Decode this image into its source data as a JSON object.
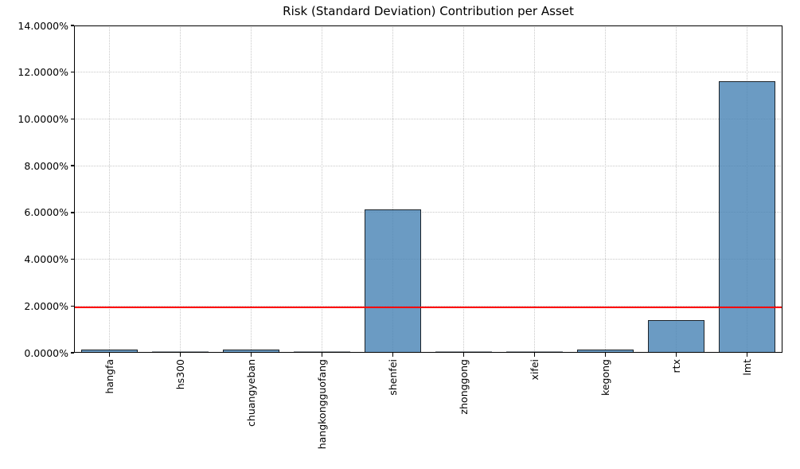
{
  "chart_data": {
    "type": "bar",
    "title": "Risk (Standard Deviation) Contribution per Asset",
    "xlabel": "",
    "ylabel": "",
    "categories": [
      "hangfa",
      "hs300",
      "chuangyeban",
      "hangkongguofang",
      "shenfei",
      "zhonggong",
      "xifei",
      "kegong",
      "rtx",
      "lmt"
    ],
    "values": [
      0.12,
      0.01,
      0.12,
      0.01,
      6.12,
      0.01,
      0.01,
      0.14,
      1.4,
      11.6
    ],
    "unit": "percent",
    "ylim": [
      0,
      14
    ],
    "yticks": [
      0,
      2,
      4,
      6,
      8,
      10,
      12,
      14
    ],
    "ytick_labels": [
      "0.0000%",
      "2.0000%",
      "4.0000%",
      "6.0000%",
      "8.0000%",
      "10.0000%",
      "12.0000%",
      "14.0000%"
    ],
    "grid": true,
    "grid_style": "dotted",
    "legend": "none",
    "reference_line": {
      "orientation": "horizontal",
      "value": 1.95,
      "color": "#FF0000"
    },
    "colors": {
      "bar_fill": "#4682B4",
      "bar_fill_opacity": 0.8,
      "bar_edge": "#0F0F0F",
      "grid": "#C8C8C8",
      "spine": "#000000",
      "background": "#FFFFFF"
    }
  }
}
